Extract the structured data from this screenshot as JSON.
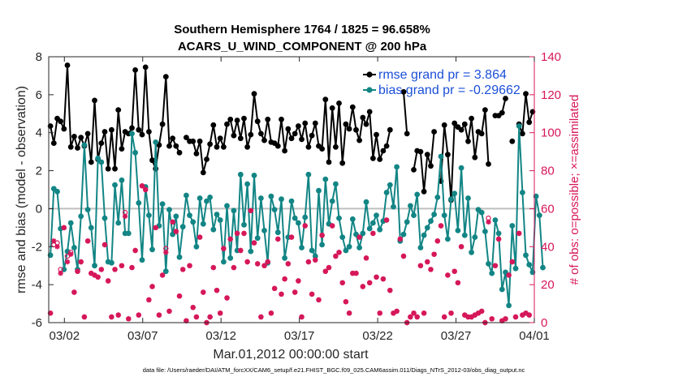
{
  "chart_data": {
    "type": "line",
    "title": "Southern Hemisphere 1764 / 1825 = 96.658%",
    "subtitle": "ACARS_U_WIND_COMPONENT @ 200 hPa",
    "xlabel": "Mar.01,2012 00:00:00 start",
    "ylabel_left": "rmse and bias (model - observation)",
    "ylabel_right": "# of obs: o=possible; ×=assimilated",
    "footer": "data file: /Users/raeder/DAI/ATM_forcXX/CAM6_setup/f.e21.FHIST_BGC.f09_025.CAM6assim.011/Diags_NTrS_2012-03/obs_diag_output.nc",
    "x_tick_labels": [
      "03/02",
      "03/07",
      "03/12",
      "03/17",
      "03/22",
      "03/27",
      "04/01"
    ],
    "x_tick_days": [
      1,
      6,
      11,
      16,
      21,
      26,
      31
    ],
    "xlim_days": [
      0,
      31
    ],
    "ylim_left": [
      -6,
      8
    ],
    "y_ticks_left": [
      "-6",
      "-4",
      "-2",
      "0",
      "2",
      "4",
      "6",
      "8"
    ],
    "ylim_right": [
      0,
      140
    ],
    "y_ticks_right": [
      "0",
      "20",
      "40",
      "60",
      "80",
      "100",
      "120",
      "140"
    ],
    "zero_line": true,
    "legend": {
      "position": "top-right",
      "entries": [
        {
          "label": "rmse grand pr = 3.864",
          "color": "#000000"
        },
        {
          "label": "bias grand pr = -0.29662",
          "color": "#138585"
        }
      ]
    },
    "colors": {
      "rmse": "#000000",
      "bias": "#138585",
      "obs": "#d6175a",
      "zero": "#bfbfbf"
    },
    "series": [
      {
        "name": "rmse grand pr = 3.864",
        "axis": "left",
        "values": [
          4.35,
          3.45,
          4.75,
          4.6,
          4.2,
          7.55,
          3.25,
          3.8,
          3.2,
          3.75,
          3.3,
          3.95,
          2.45,
          5.7,
          2.6,
          3.45,
          4.05,
          2.1,
          4.15,
          2.1,
          5.2,
          3.15,
          4.05,
          3.95,
          4.25,
          7.3,
          4.15,
          3.9,
          7.45,
          4.05,
          2.55,
          2.1,
          3.35,
          4.45,
          6.95,
          3.3,
          3.7,
          3.3,
          2.95,
          null,
          3.75,
          3.55,
          3.55,
          2.9,
          3.55,
          1.9,
          2.6,
          3.4,
          4.4,
          3.25,
          3.7,
          3.25,
          4.45,
          4.7,
          3.85,
          4.65,
          3.7,
          4.75,
          3.25,
          3.9,
          6.05,
          4.6,
          3.95,
          3.6,
          4.7,
          3.5,
          3.45,
          3.3,
          4.7,
          3.05,
          4.2,
          3.7,
          3.95,
          4.35,
          3.65,
          4.5,
          3.25,
          3.85,
          4.5,
          3.3,
          3.15,
          5.75,
          2.45,
          5.3,
          3.25,
          5.55,
          2.4,
          4.45,
          4.2,
          5.35,
          4.15,
          3.6,
          4.8,
          4.45,
          5.1,
          2.65,
          3.9,
          2.6,
          3.05,
          3.3,
          4.15,
          null,
          null,
          null,
          6.15,
          3.95,
          null,
          2.05,
          3.05,
          3.0,
          0.9,
          2.85,
          2.25,
          4.05,
          null,
          1.45,
          4.4,
          2.85,
          0.45,
          4.5,
          4.3,
          4.15,
          4.45,
          3.55,
          4.75,
          2.7,
          4.05,
          3.95,
          5.2,
          2.35,
          null,
          4.9,
          4.9,
          5.05,
          5.8,
          null,
          3.55,
          null,
          4.45,
          3.95,
          6.05,
          4.55,
          5.1
        ]
      },
      {
        "name": "bias grand pr = -0.29662",
        "axis": "left",
        "values": [
          -2.45,
          1.05,
          0.9,
          -1.05,
          -3.2,
          -2.25,
          -0.75,
          -2.05,
          -3.2,
          -0.4,
          3.35,
          -0.05,
          -1.0,
          -3.0,
          2.65,
          2.45,
          -0.5,
          -2.8,
          -2.85,
          1.25,
          -0.75,
          1.5,
          -1.3,
          -1.3,
          3.95,
          2.95,
          0.3,
          -2.7,
          1.15,
          -0.35,
          -2.15,
          3.5,
          -0.9,
          0.25,
          -3.3,
          -0.05,
          -1.35,
          -0.4,
          -2.55,
          -0.95,
          0.7,
          -0.35,
          -0.7,
          -2.0,
          0.55,
          -0.8,
          0.4,
          0.6,
          -1.1,
          -0.3,
          -0.6,
          -2.8,
          0.15,
          -2.6,
          -0.1,
          -2.2,
          1.8,
          -0.85,
          1.3,
          -2.25,
          1.75,
          -1.55,
          0.55,
          -1.15,
          -2.85,
          0.65,
          -0.05,
          -1.25,
          0.5,
          -2.6,
          -1.5,
          0.4,
          -0.5,
          -0.75,
          -2.05,
          -0.45,
          1.8,
          -2.2,
          -2.5,
          0.95,
          -1.9,
          1.55,
          -0.8,
          0.4,
          1.3,
          -0.5,
          -1.5,
          -2.2,
          -2.0,
          -0.55,
          -1.35,
          -2.05,
          -1.3,
          0.35,
          -1.05,
          -0.75,
          -0.35,
          -1.1,
          -0.65,
          0.85,
          1.25,
          0.1,
          2.2,
          -1.7,
          -1.35,
          -0.7,
          0.15,
          -0.35,
          0.75,
          -2.05,
          -1.4,
          -1.0,
          -0.65,
          -0.3,
          0.6,
          2.75,
          -0.35,
          -1.6,
          0.5,
          0.8,
          -1.15,
          2.15,
          -1.4,
          0.55,
          -2.3,
          -1.5,
          -0.05,
          -0.2,
          -1.2,
          -2.9,
          -3.4,
          -0.6,
          -1.3,
          -4.25,
          -3.35,
          -5.1,
          -0.9,
          -3.15,
          4.35,
          0.85,
          -2.45,
          -2.95,
          -3.35,
          0.65,
          -0.35,
          -3.1
        ]
      },
      {
        "name": "possible",
        "axis": "right",
        "values": [
          5,
          41,
          42,
          28,
          50,
          35,
          37,
          16,
          27,
          32,
          3,
          43,
          26,
          25,
          24,
          28,
          41,
          22,
          3,
          28,
          4,
          30,
          58,
          2,
          29,
          38,
          4,
          72,
          70,
          12,
          19,
          50,
          4,
          25,
          39,
          6,
          53,
          48,
          14,
          28,
          1,
          30,
          8,
          3,
          45,
          16,
          0,
          3,
          29,
          17,
          5,
          39,
          13,
          44,
          29,
          47,
          38,
          47,
          32,
          59,
          42,
          31,
          3,
          30,
          32,
          5,
          18,
          44,
          15,
          23,
          31,
          45,
          16,
          22,
          3,
          51,
          32,
          15,
          33,
          12,
          46,
          27,
          29,
          51,
          35,
          37,
          21,
          11,
          5,
          26,
          26,
          45,
          19,
          34,
          21,
          47,
          24,
          5,
          23,
          54,
          17,
          5,
          6,
          44,
          35,
          0,
          3,
          5,
          3,
          30,
          5,
          32,
          28,
          36,
          43,
          51,
          3,
          25,
          5,
          27,
          21,
          40,
          4,
          3,
          3,
          4,
          5,
          6,
          0,
          55,
          2,
          30,
          44,
          1,
          2,
          25,
          32,
          3,
          47,
          4,
          5,
          4
        ]
      },
      {
        "name": "assimilated",
        "axis": "right",
        "values": [
          5,
          43,
          40,
          26,
          50,
          32,
          36,
          16,
          27,
          32,
          3,
          43,
          26,
          25,
          24,
          28,
          41,
          22,
          3,
          28,
          4,
          30,
          56,
          2,
          29,
          38,
          4,
          72,
          70,
          12,
          19,
          50,
          4,
          25,
          37,
          6,
          53,
          48,
          14,
          28,
          1,
          30,
          8,
          3,
          45,
          16,
          0,
          3,
          29,
          17,
          5,
          39,
          13,
          44,
          29,
          47,
          38,
          47,
          32,
          59,
          42,
          31,
          3,
          30,
          32,
          5,
          18,
          44,
          15,
          23,
          31,
          45,
          16,
          22,
          3,
          51,
          32,
          15,
          33,
          12,
          46,
          27,
          29,
          51,
          35,
          37,
          21,
          11,
          5,
          26,
          26,
          45,
          19,
          34,
          21,
          47,
          24,
          5,
          23,
          54,
          17,
          5,
          6,
          44,
          35,
          0,
          3,
          5,
          3,
          30,
          5,
          32,
          28,
          36,
          43,
          51,
          3,
          25,
          5,
          27,
          21,
          40,
          4,
          3,
          3,
          4,
          5,
          6,
          0,
          53,
          2,
          30,
          44,
          1,
          2,
          25,
          32,
          3,
          47,
          4,
          5,
          4
        ]
      }
    ]
  }
}
